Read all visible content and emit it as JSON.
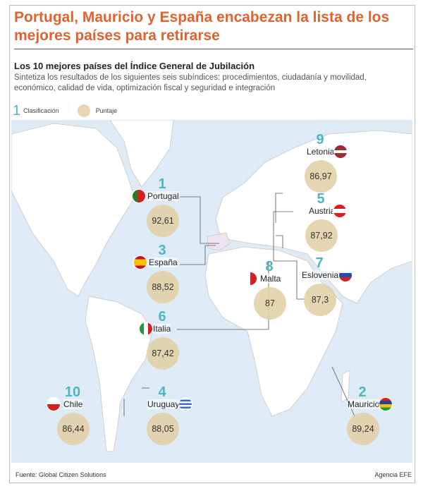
{
  "title": "Portugal, Mauricio y España encabezan la lista de los mejores países para retirarse",
  "subtitle": "Los 10 mejores países del Índice General de Jubilación",
  "description": "Sintetiza los resultados de los siguientes seis subíndices: procedimientos, ciudadanía y movilidad, económico, calidad de vida, optimización fiscal y seguridad e integración",
  "legend": {
    "rank_sample": "1",
    "rank_label": "Clasificación",
    "score_label": "Puntaje"
  },
  "colors": {
    "title": "#e0622f",
    "rank": "#4fb5c1",
    "score": "#e2d0a8",
    "sea": "#deebf6"
  },
  "countries": [
    {
      "rank": "1",
      "name": "Portugal",
      "score": "92,61"
    },
    {
      "rank": "2",
      "name": "Mauricio",
      "score": "89,24"
    },
    {
      "rank": "3",
      "name": "España",
      "score": "88,52"
    },
    {
      "rank": "4",
      "name": "Uruguay",
      "score": "88,05"
    },
    {
      "rank": "5",
      "name": "Austria",
      "score": "87,92"
    },
    {
      "rank": "6",
      "name": "Italia",
      "score": "87,42"
    },
    {
      "rank": "7",
      "name": "Eslovenia",
      "score": "87,3"
    },
    {
      "rank": "8",
      "name": "Malta",
      "score": "87"
    },
    {
      "rank": "9",
      "name": "Letonia",
      "score": "86,97"
    },
    {
      "rank": "10",
      "name": "Chile",
      "score": "86,44"
    }
  ],
  "footer": {
    "source": "Fuente: Global Citizen Solutions",
    "agency": "Agencia EFE"
  }
}
